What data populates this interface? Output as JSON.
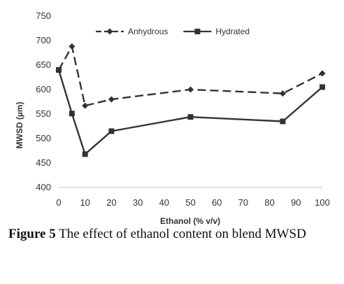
{
  "chart_data": {
    "type": "line",
    "xlabel": "Ethanol (% v/v)",
    "ylabel": "MWSD (µm)",
    "xlim": [
      0,
      100
    ],
    "ylim": [
      400,
      750
    ],
    "x_ticks": [
      "0",
      "10",
      "20",
      "30",
      "40",
      "50",
      "60",
      "70",
      "80",
      "90",
      "100"
    ],
    "y_ticks": [
      "400",
      "450",
      "500",
      "550",
      "600",
      "650",
      "700",
      "750"
    ],
    "legend_position": "top-center",
    "grid": false,
    "series": [
      {
        "name": "Anhydrous",
        "style": "dashed",
        "marker": "diamond",
        "color": "#333333",
        "x": [
          0,
          5,
          10,
          20,
          50,
          85,
          100
        ],
        "y": [
          640,
          688,
          567,
          580,
          600,
          592,
          633
        ]
      },
      {
        "name": "Hydrated",
        "style": "solid",
        "marker": "square",
        "color": "#333333",
        "x": [
          0,
          5,
          10,
          20,
          50,
          85,
          100
        ],
        "y": [
          640,
          551,
          468,
          515,
          544,
          535,
          605
        ]
      }
    ]
  },
  "caption": {
    "label": "Figure 5",
    "text": " The effect of ethanol content on blend MWSD"
  }
}
